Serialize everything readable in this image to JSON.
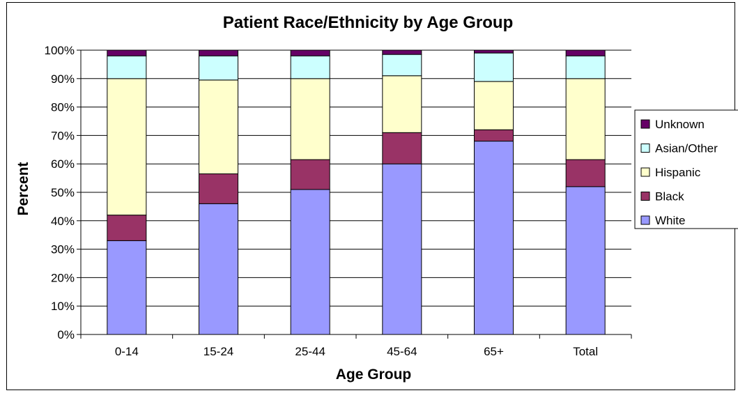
{
  "chart_data": {
    "type": "bar",
    "stacked": true,
    "percent": true,
    "title": "Patient Race/Ethnicity by Age Group",
    "xlabel": "Age Group",
    "ylabel": "Percent",
    "ylim": [
      0,
      100
    ],
    "yticks": [
      "0%",
      "10%",
      "20%",
      "30%",
      "40%",
      "50%",
      "60%",
      "70%",
      "80%",
      "90%",
      "100%"
    ],
    "grid": true,
    "legend_position": "right",
    "categories": [
      "0-14",
      "15-24",
      "25-44",
      "45-64",
      "65+",
      "Total"
    ],
    "series": [
      {
        "name": "White",
        "color": "#9999ff",
        "values": [
          33,
          46,
          51,
          60,
          68,
          52
        ]
      },
      {
        "name": "Black",
        "color": "#993366",
        "values": [
          9,
          10.5,
          10.5,
          11,
          4,
          9.5
        ]
      },
      {
        "name": "Hispanic",
        "color": "#ffffcc",
        "values": [
          48,
          33,
          28.5,
          20,
          17,
          28.5
        ]
      },
      {
        "name": "Asian/Other",
        "color": "#ccffff",
        "values": [
          8,
          8.5,
          8,
          7.5,
          10,
          8
        ]
      },
      {
        "name": "Unknown",
        "color": "#660066",
        "values": [
          2,
          2,
          2,
          1.5,
          1,
          2
        ]
      }
    ],
    "legend_order": [
      "Unknown",
      "Asian/Other",
      "Hispanic",
      "Black",
      "White"
    ]
  }
}
